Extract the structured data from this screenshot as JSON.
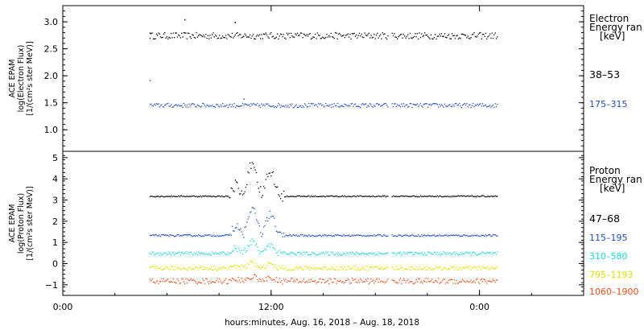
{
  "chart_data": [
    {
      "type": "scatter",
      "panel": "electron",
      "ylabel": [
        "ACE EPAM",
        "log(Electron Flux)",
        "[1/(cm²s ster MeV)]"
      ],
      "ylim": [
        0.6,
        3.3
      ],
      "yticks": [
        1.0,
        1.5,
        2.0,
        2.5,
        3.0
      ],
      "ytick_labels": [
        "1.0",
        "1.5",
        "2.0",
        "2.5",
        "3.0"
      ],
      "legend_title": [
        "Electron",
        "Energy ran",
        "[keV]"
      ],
      "series": [
        {
          "name": "38–53",
          "color": "#000000",
          "base": 2.75,
          "jitter": 0.06,
          "start": 5.0,
          "end": 25.0,
          "gaps": [
            [
              18.7,
              18.9
            ]
          ],
          "extra_points": [
            [
              7.0,
              3.05
            ],
            [
              9.9,
              3.0
            ],
            [
              5.0,
              2.8
            ]
          ]
        },
        {
          "name": "175–315",
          "color": "#1f4fbf",
          "base": 1.46,
          "jitter": 0.04,
          "start": 5.0,
          "end": 25.0,
          "gaps": [
            [
              18.7,
              18.9
            ]
          ],
          "extra_points": [
            [
              5.0,
              1.92
            ],
            [
              10.4,
              1.58
            ]
          ]
        }
      ]
    },
    {
      "type": "scatter",
      "panel": "proton",
      "ylabel": [
        "ACE EPAM",
        "log(Proton Flux)",
        "[1/(cm²s ster MeV)]"
      ],
      "ylim": [
        -1.5,
        5.3
      ],
      "yticks": [
        -1,
        0,
        1,
        2,
        3,
        4,
        5
      ],
      "ytick_labels": [
        "−1",
        "0",
        "1",
        "2",
        "3",
        "4",
        "5"
      ],
      "legend_title": [
        "Proton",
        "Energy ran",
        "[keV]"
      ],
      "event": {
        "start": 9.5,
        "end": 12.8
      },
      "series": [
        {
          "name": "47–68",
          "color": "#000000",
          "base": 3.2,
          "jitter": 0.03,
          "rise": 1.6,
          "start": 5.0,
          "end": 25.0,
          "gaps": [
            [
              18.7,
              18.9
            ]
          ]
        },
        {
          "name": "115–195",
          "color": "#1f4fbf",
          "base": 1.35,
          "jitter": 0.04,
          "rise": 1.3,
          "start": 5.0,
          "end": 25.0,
          "gaps": [
            [
              18.7,
              18.9
            ]
          ]
        },
        {
          "name": "310–580",
          "color": "#22d3e0",
          "base": 0.5,
          "jitter": 0.08,
          "rise": 0.6,
          "start": 5.0,
          "end": 25.0,
          "gaps": [
            [
              18.7,
              18.9
            ]
          ]
        },
        {
          "name": "795–1193",
          "color": "#dede00",
          "base": -0.2,
          "jitter": 0.1,
          "rise": 0.3,
          "start": 5.0,
          "end": 25.0,
          "gaps": [
            [
              18.7,
              18.9
            ]
          ]
        },
        {
          "name": "1060–1900",
          "color": "#e8501a",
          "base": -0.8,
          "jitter": 0.13,
          "rise": 0.2,
          "start": 5.0,
          "end": 25.0,
          "gaps": [
            [
              18.7,
              18.9
            ]
          ]
        }
      ]
    }
  ],
  "x_axis": {
    "xlim": [
      0,
      30
    ],
    "ticks": [
      0,
      12,
      24
    ],
    "tick_labels": [
      "0:00",
      "12:00",
      "0:00"
    ],
    "title": "hours:minutes, Aug. 16, 2018 – Aug. 18, 2018"
  }
}
